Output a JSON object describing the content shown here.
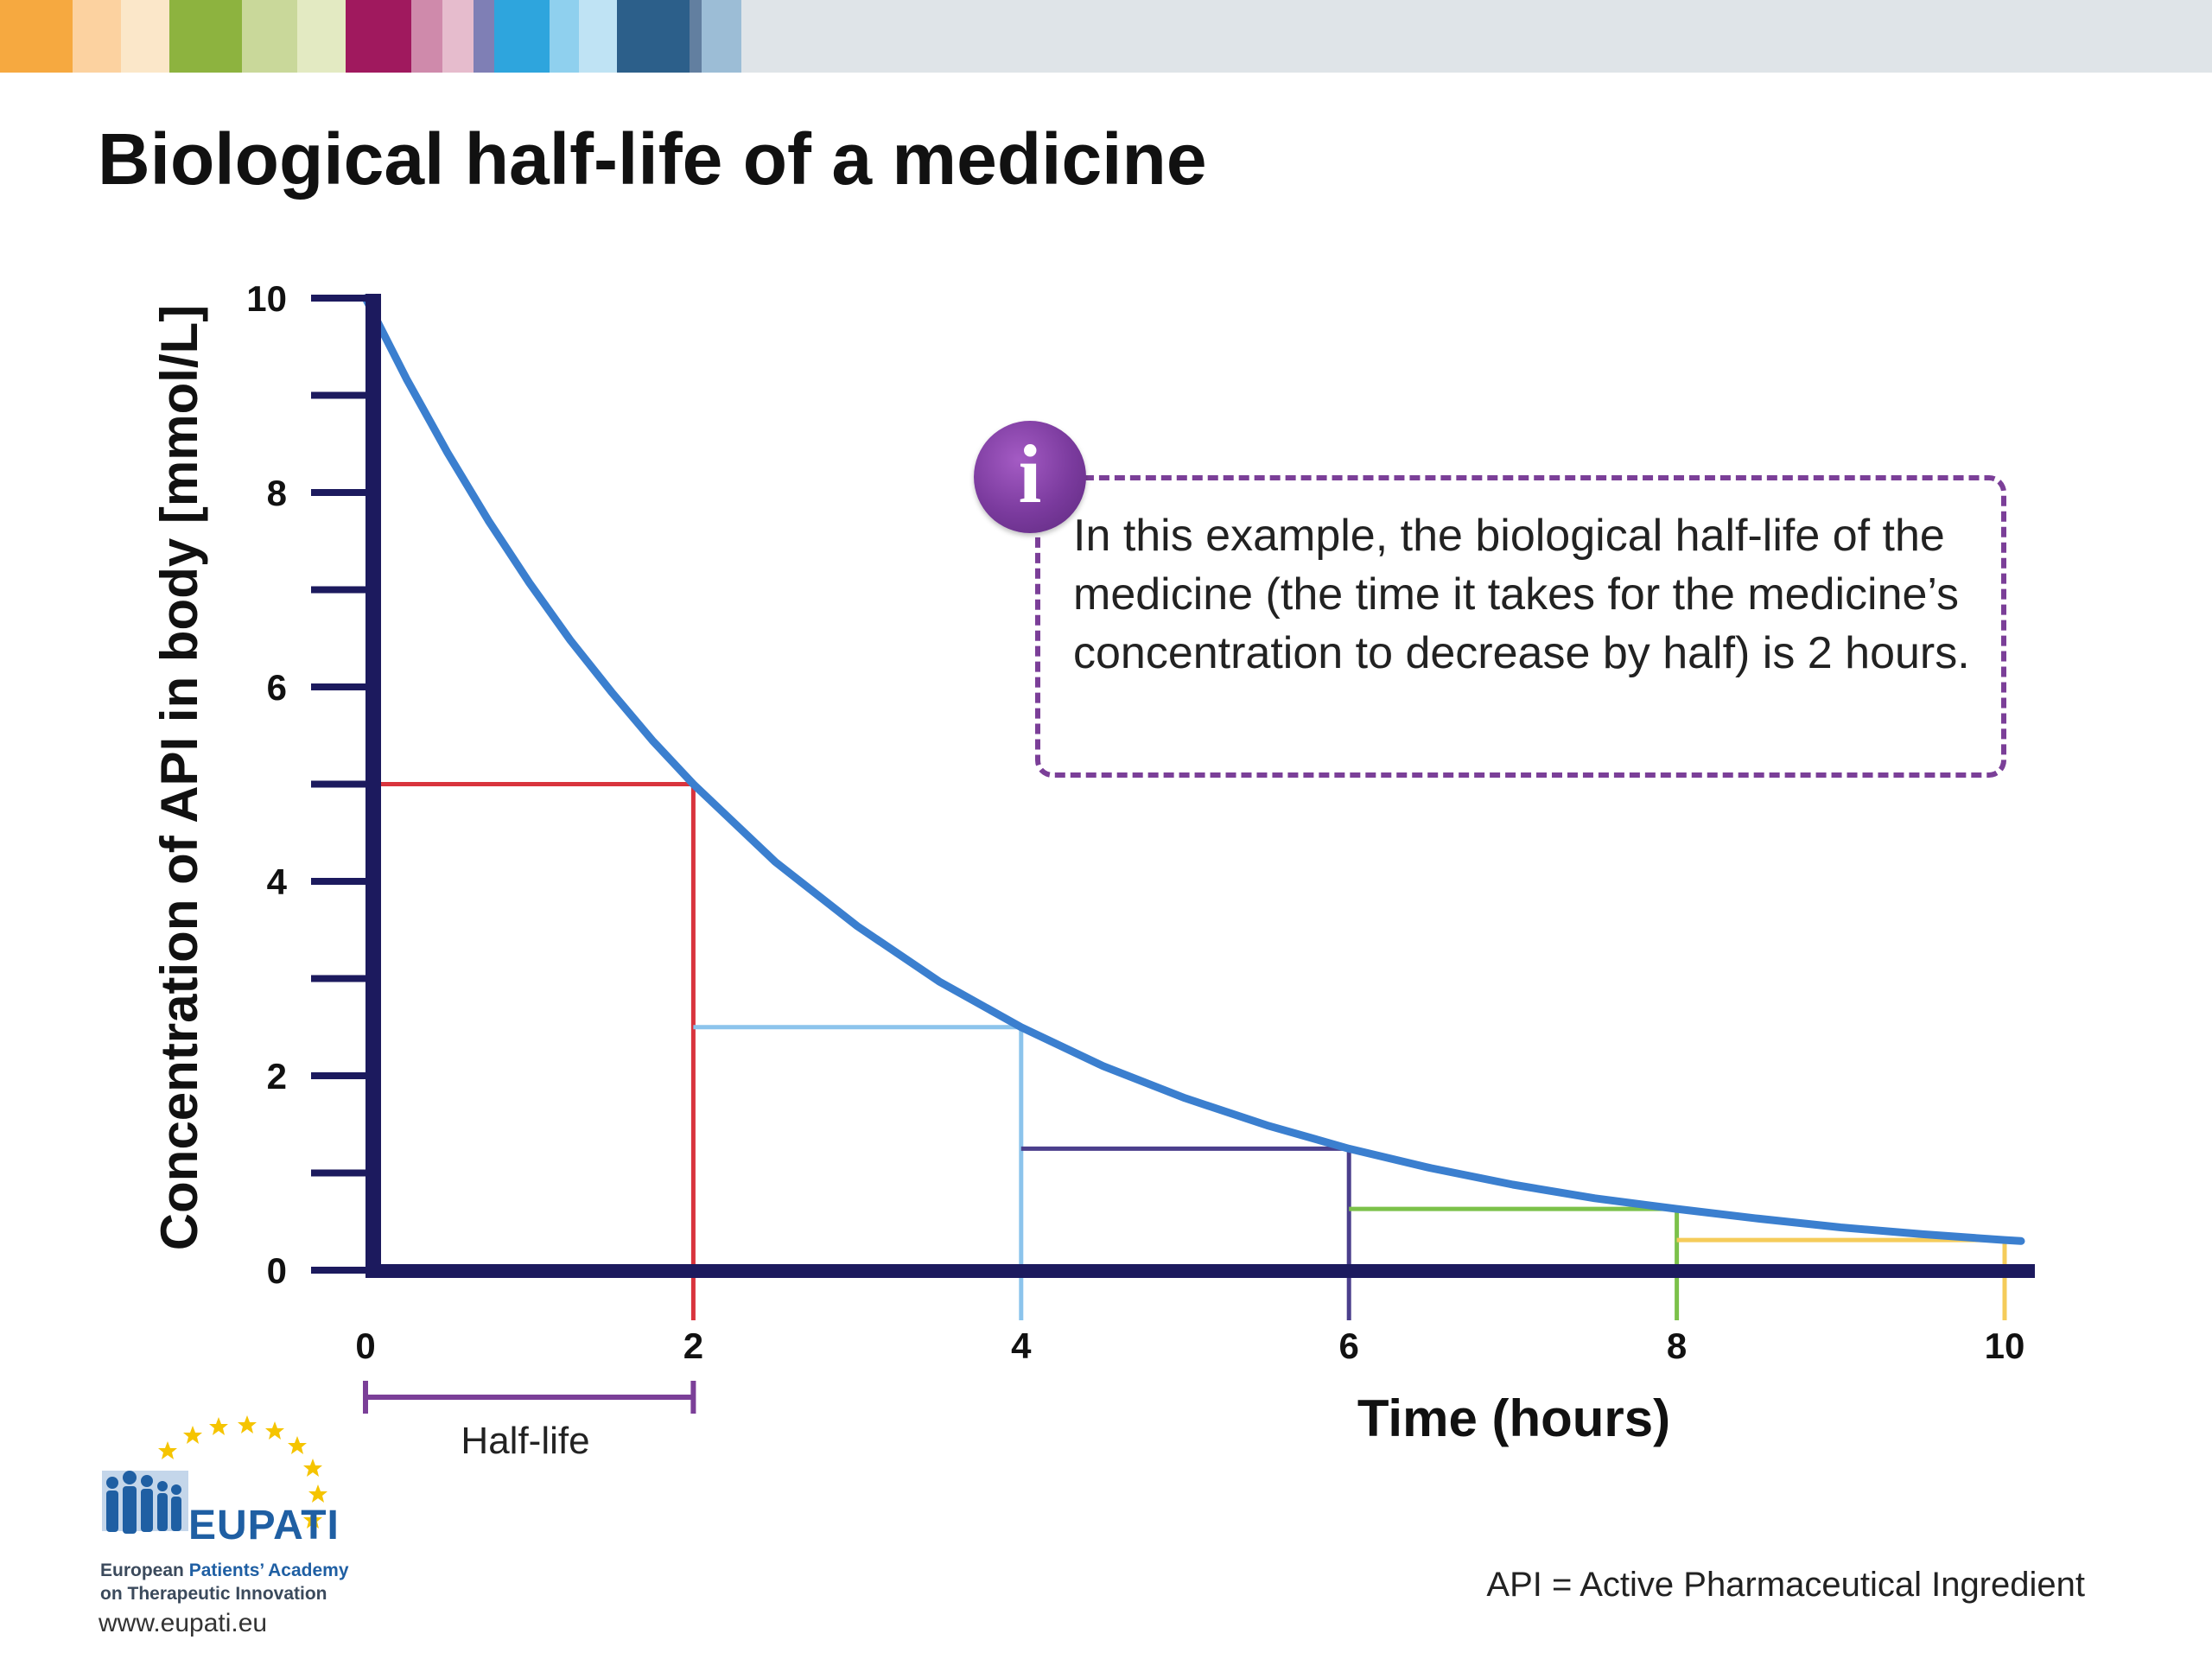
{
  "title": "Biological half-life of a medicine",
  "topbar_colors": [
    "#f6a940",
    "#fcd2a0",
    "#fbe7c9",
    "#8db33f",
    "#c9d89a",
    "#e3eac2",
    "#a0195e",
    "#cf8aab",
    "#e6bccd",
    "#7f7fb5",
    "#2ea5dd",
    "#8fd0ee",
    "#bfe3f4",
    "#2c5f8a",
    "#627fa0",
    "#9cbdd6",
    "#dfe4e8"
  ],
  "info": {
    "icon": "info-icon",
    "text": "In this example, the biological half-life of the medicine (the time it takes for the medicine’s concentration to decrease by half) is 2 hours."
  },
  "halflife_label": "Half-life",
  "footnote": "API = Active Pharmaceutical Ingredient",
  "logo": {
    "name": "EUPATI",
    "line1_prefix": "European ",
    "line1_highlight": "Patients’ Academy",
    "line2": "on Therapeutic Innovation",
    "url": "www.eupati.eu"
  },
  "chart_data": {
    "type": "line",
    "xlabel": "Time (hours)",
    "ylabel": "Concentration of API in body [mmol/L]",
    "xlim": [
      0,
      10.1
    ],
    "ylim": [
      0,
      10
    ],
    "x_ticks": [
      0,
      2,
      4,
      6,
      8,
      10
    ],
    "y_ticks_labeled": [
      0,
      2,
      4,
      6,
      8,
      10
    ],
    "y_ticks_minor": [
      1,
      3,
      5,
      7,
      9
    ],
    "grid": false,
    "legend": "none",
    "half_life_hours": 2,
    "series": [
      {
        "color": "#3b7fcf",
        "x": [
          0,
          0.25,
          0.5,
          0.75,
          1,
          1.25,
          1.5,
          1.75,
          2,
          2.5,
          3,
          3.5,
          4,
          4.5,
          5,
          5.5,
          6,
          6.5,
          7,
          7.5,
          8,
          8.5,
          9,
          9.5,
          10,
          10.1
        ],
        "y": [
          10,
          9.17,
          8.41,
          7.71,
          7.07,
          6.48,
          5.95,
          5.45,
          5,
          4.2,
          3.54,
          2.97,
          2.5,
          2.1,
          1.77,
          1.49,
          1.25,
          1.05,
          0.88,
          0.74,
          0.63,
          0.53,
          0.44,
          0.37,
          0.31,
          0.3
        ]
      }
    ],
    "reference_lines": [
      {
        "x": 2,
        "y": 5,
        "x_from": 0,
        "color": "#d9343d"
      },
      {
        "x": 4,
        "y": 2.5,
        "x_from": 2,
        "color": "#8cc4ec"
      },
      {
        "x": 6,
        "y": 1.25,
        "x_from": 4,
        "color": "#4b3f8c"
      },
      {
        "x": 8,
        "y": 0.63,
        "x_from": 6,
        "color": "#7cc14a"
      },
      {
        "x": 10,
        "y": 0.31,
        "x_from": 8,
        "color": "#f5cc5a"
      }
    ],
    "half_life_span": [
      0,
      2
    ]
  }
}
